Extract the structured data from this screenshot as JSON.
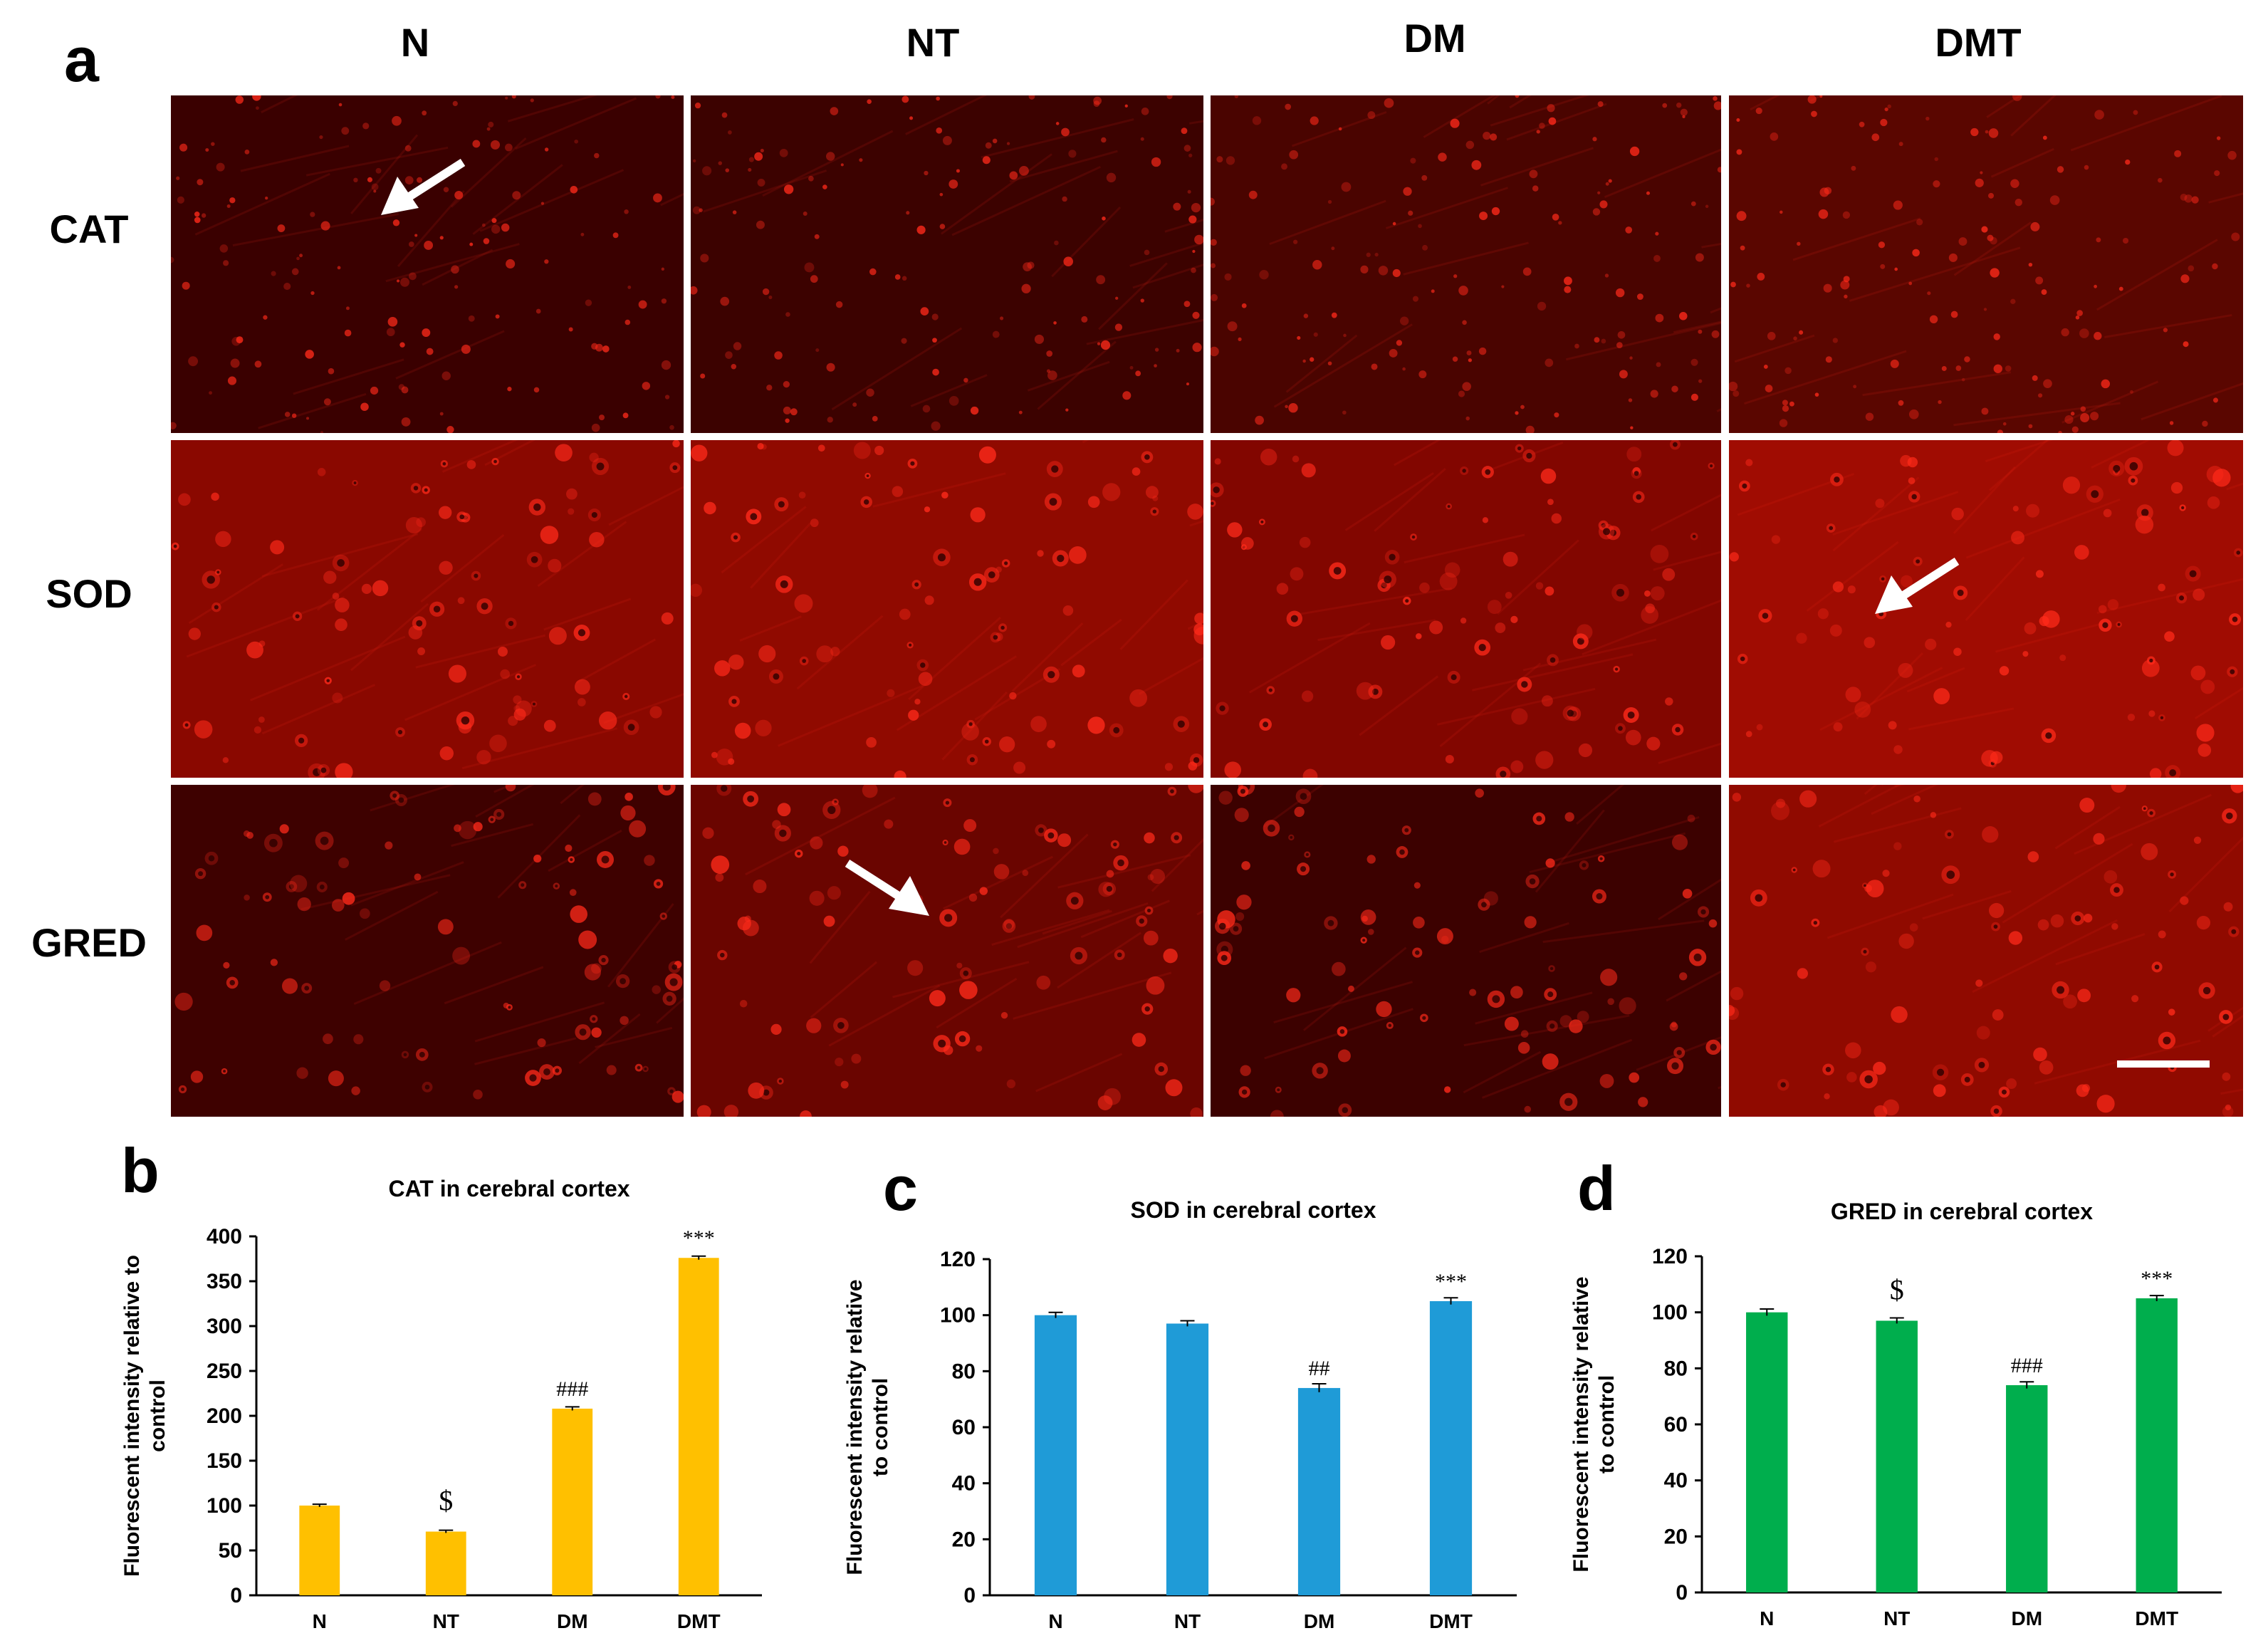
{
  "panels": {
    "a": "a",
    "b": "b",
    "c": "c",
    "d": "d"
  },
  "micrograph_grid": {
    "columns": [
      "N",
      "NT",
      "DM",
      "DMT"
    ],
    "rows": [
      "CAT",
      "SOD",
      "GRED"
    ],
    "arrows": [
      {
        "row": 0,
        "col": 0
      },
      {
        "row": 1,
        "col": 3
      },
      {
        "row": 2,
        "col": 1
      }
    ],
    "scale_bar": {
      "row": 2,
      "col": 3
    },
    "colors": {
      "tissue_dark": "#3a0000",
      "stain": "#ff2a1a",
      "arrow": "#ffffff"
    }
  },
  "chart_data": [
    {
      "type": "bar",
      "title": "CAT in cerebral cortex",
      "ylabel": "Fluorescent intensity relative to control",
      "categories": [
        "N",
        "NT",
        "DM",
        "DMT"
      ],
      "values": [
        100,
        71,
        208,
        376
      ],
      "errors": [
        1.5,
        1.5,
        2,
        2
      ],
      "annotations": [
        "",
        "$",
        "###",
        "***"
      ],
      "ylim": [
        0,
        400
      ],
      "yticks": [
        0,
        50,
        100,
        150,
        200,
        250,
        300,
        350,
        400
      ],
      "color": "#FFC000"
    },
    {
      "type": "bar",
      "title": "SOD in cerebral cortex",
      "ylabel": "Fluorescent intensity relative to control",
      "categories": [
        "N",
        "NT",
        "DM",
        "DMT"
      ],
      "values": [
        100,
        97,
        74,
        105
      ],
      "errors": [
        1,
        1,
        1.5,
        1.2
      ],
      "annotations": [
        "",
        "",
        "##",
        "***"
      ],
      "ylim": [
        0,
        120
      ],
      "yticks": [
        0,
        20,
        40,
        60,
        80,
        100,
        120
      ],
      "color": "#1F9BD7"
    },
    {
      "type": "bar",
      "title": "GRED in cerebral cortex",
      "ylabel": "Fluorescent intensity relative to control",
      "categories": [
        "N",
        "NT",
        "DM",
        "DMT"
      ],
      "values": [
        100,
        97,
        74,
        105
      ],
      "errors": [
        1.2,
        1,
        1.2,
        1
      ],
      "annotations": [
        "",
        "$",
        "###",
        "***"
      ],
      "ylim": [
        0,
        120
      ],
      "yticks": [
        0,
        20,
        40,
        60,
        80,
        100,
        120
      ],
      "color": "#00AE4D"
    }
  ]
}
